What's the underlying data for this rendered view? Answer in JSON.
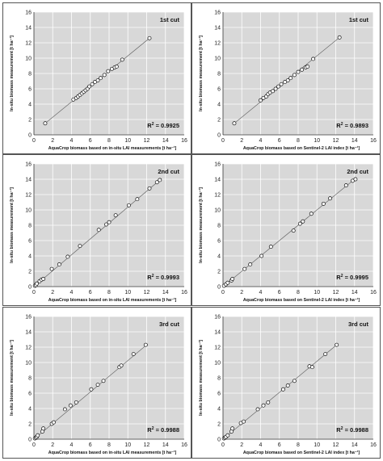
{
  "chart_data": [
    {
      "type": "scatter",
      "title": "1st cut",
      "xlabel": "AquaCrop biomass based on in-situ LAI measurements [t ha⁻¹]",
      "ylabel": "In-situ biomass measurement [t ha⁻¹]",
      "r2": "0.9925",
      "xlim": [
        0,
        16
      ],
      "ylim": [
        0,
        16
      ],
      "xticks": [
        "0",
        "2",
        "4",
        "6",
        "8",
        "10",
        "12",
        "14",
        "16"
      ],
      "yticks": [
        "0",
        "2",
        "4",
        "6",
        "8",
        "10",
        "12",
        "14",
        "16"
      ],
      "grid": true,
      "series": [
        {
          "points": [
            [
              1.2,
              1.5
            ],
            [
              4.2,
              4.6
            ],
            [
              4.5,
              4.8
            ],
            [
              4.7,
              5.0
            ],
            [
              4.9,
              5.2
            ],
            [
              5.1,
              5.4
            ],
            [
              5.3,
              5.6
            ],
            [
              5.5,
              5.8
            ],
            [
              5.7,
              6.0
            ],
            [
              5.9,
              6.3
            ],
            [
              6.2,
              6.6
            ],
            [
              6.5,
              6.9
            ],
            [
              6.8,
              7.1
            ],
            [
              7.1,
              7.4
            ],
            [
              7.5,
              7.8
            ],
            [
              7.9,
              8.3
            ],
            [
              8.3,
              8.6
            ],
            [
              8.6,
              8.8
            ],
            [
              8.8,
              8.9
            ],
            [
              9.4,
              9.8
            ],
            [
              12.3,
              12.6
            ]
          ]
        }
      ],
      "fit": [
        [
          1.2,
          1.5
        ],
        [
          12.3,
          12.6
        ]
      ]
    },
    {
      "type": "scatter",
      "title": "1st cut",
      "xlabel": "AquaCrop biomass based on Sentinel-2 LAI index [t ha⁻¹]",
      "ylabel": "In-situ biomass measurement [t ha⁻¹]",
      "r2": "0.9893",
      "xlim": [
        0,
        16
      ],
      "ylim": [
        0,
        16
      ],
      "xticks": [
        "0",
        "2",
        "4",
        "6",
        "8",
        "10",
        "12",
        "14",
        "16"
      ],
      "yticks": [
        "0",
        "2",
        "4",
        "6",
        "8",
        "10",
        "12",
        "14",
        "16"
      ],
      "grid": true,
      "series": [
        {
          "points": [
            [
              1.2,
              1.5
            ],
            [
              4.0,
              4.5
            ],
            [
              4.3,
              4.8
            ],
            [
              4.6,
              5.0
            ],
            [
              4.8,
              5.3
            ],
            [
              5.0,
              5.5
            ],
            [
              5.3,
              5.7
            ],
            [
              5.6,
              6.0
            ],
            [
              5.9,
              6.3
            ],
            [
              6.2,
              6.6
            ],
            [
              6.6,
              6.9
            ],
            [
              6.9,
              7.1
            ],
            [
              7.2,
              7.4
            ],
            [
              7.6,
              7.8
            ],
            [
              8.0,
              8.2
            ],
            [
              8.4,
              8.5
            ],
            [
              8.8,
              8.8
            ],
            [
              9.0,
              8.9
            ],
            [
              9.6,
              9.9
            ],
            [
              12.4,
              12.7
            ]
          ]
        }
      ],
      "fit": [
        [
          1.2,
          1.5
        ],
        [
          12.4,
          12.7
        ]
      ]
    },
    {
      "type": "scatter",
      "title": "2nd cut",
      "xlabel": "AquaCrop biomass based on in-situ LAI measurements [t ha⁻¹]",
      "ylabel": "In-situ biomass measurement [t ha⁻¹]",
      "r2": "0.9993",
      "xlim": [
        0,
        16
      ],
      "ylim": [
        0,
        16
      ],
      "xticks": [
        "0",
        "2",
        "4",
        "6",
        "8",
        "10",
        "12",
        "14",
        "16"
      ],
      "yticks": [
        "0",
        "2",
        "4",
        "6",
        "8",
        "10",
        "12",
        "14",
        "16"
      ],
      "grid": true,
      "series": [
        {
          "points": [
            [
              0.1,
              0.1
            ],
            [
              0.2,
              0.2
            ],
            [
              0.3,
              0.4
            ],
            [
              0.6,
              0.7
            ],
            [
              0.8,
              0.9
            ],
            [
              1.0,
              1.0
            ],
            [
              1.9,
              2.3
            ],
            [
              2.7,
              2.9
            ],
            [
              3.6,
              3.9
            ],
            [
              4.9,
              5.3
            ],
            [
              6.9,
              7.4
            ],
            [
              7.7,
              8.1
            ],
            [
              8.0,
              8.4
            ],
            [
              8.7,
              9.3
            ],
            [
              10.1,
              10.6
            ],
            [
              11.0,
              11.4
            ],
            [
              12.3,
              12.8
            ],
            [
              13.1,
              13.6
            ],
            [
              13.4,
              13.9
            ]
          ]
        }
      ],
      "fit": [
        [
          0,
          0
        ],
        [
          13.6,
          14.1
        ]
      ]
    },
    {
      "type": "scatter",
      "title": "2nd cut",
      "xlabel": "AquaCrop biomass based on Sentinel-2 LAI index [t ha⁻¹]",
      "ylabel": "In-situ biomass measurement [t ha⁻¹]",
      "r2": "0.9995",
      "xlim": [
        0,
        16
      ],
      "ylim": [
        0,
        16
      ],
      "xticks": [
        "0",
        "2",
        "4",
        "6",
        "8",
        "10",
        "12",
        "14",
        "16"
      ],
      "yticks": [
        "0",
        "2",
        "4",
        "6",
        "8",
        "10",
        "12",
        "14",
        "16"
      ],
      "grid": true,
      "series": [
        {
          "points": [
            [
              0.1,
              0.1
            ],
            [
              0.3,
              0.3
            ],
            [
              0.5,
              0.5
            ],
            [
              0.9,
              0.8
            ],
            [
              1.0,
              1.0
            ],
            [
              2.3,
              2.3
            ],
            [
              2.9,
              2.9
            ],
            [
              4.1,
              4.0
            ],
            [
              5.1,
              5.2
            ],
            [
              7.5,
              7.3
            ],
            [
              8.2,
              8.2
            ],
            [
              8.5,
              8.5
            ],
            [
              9.4,
              9.5
            ],
            [
              10.7,
              10.8
            ],
            [
              11.4,
              11.5
            ],
            [
              13.1,
              13.2
            ],
            [
              13.8,
              13.8
            ],
            [
              14.1,
              14.0
            ]
          ]
        }
      ],
      "fit": [
        [
          0,
          0
        ],
        [
          14.2,
          14.2
        ]
      ]
    },
    {
      "type": "scatter",
      "title": "3rd cut",
      "xlabel": "AquaCrop biomass based on in-situ LAI measurements [t ha⁻¹]",
      "ylabel": "In-situ biomass measurement [t ha⁻¹]",
      "r2": "0.9988",
      "xlim": [
        0,
        16
      ],
      "ylim": [
        0,
        16
      ],
      "xticks": [
        "0",
        "2",
        "4",
        "6",
        "8",
        "10",
        "12",
        "14",
        "16"
      ],
      "yticks": [
        "0",
        "2",
        "4",
        "6",
        "8",
        "10",
        "12",
        "14",
        "16"
      ],
      "grid": true,
      "series": [
        {
          "points": [
            [
              0.1,
              0.1
            ],
            [
              0.2,
              0.2
            ],
            [
              0.3,
              0.3
            ],
            [
              0.4,
              0.5
            ],
            [
              0.9,
              1.0
            ],
            [
              1.0,
              1.4
            ],
            [
              1.9,
              2.0
            ],
            [
              2.1,
              2.2
            ],
            [
              3.3,
              3.9
            ],
            [
              3.9,
              4.4
            ],
            [
              4.5,
              4.8
            ],
            [
              6.1,
              6.5
            ],
            [
              6.8,
              7.1
            ],
            [
              7.4,
              7.6
            ],
            [
              9.1,
              9.4
            ],
            [
              9.3,
              9.6
            ],
            [
              10.6,
              11.1
            ],
            [
              11.9,
              12.3
            ]
          ]
        }
      ],
      "fit": [
        [
          0,
          0
        ],
        [
          12.0,
          12.3
        ]
      ]
    },
    {
      "type": "scatter",
      "title": "3rd cut",
      "xlabel": "AquaCrop biomass based on Sentinel-2 LAI index [t ha⁻¹]",
      "ylabel": "In-situ biomass measurement [t ha⁻¹]",
      "r2": "0.9988",
      "xlim": [
        0,
        16
      ],
      "ylim": [
        0,
        16
      ],
      "xticks": [
        "0",
        "2",
        "4",
        "6",
        "8",
        "10",
        "12",
        "14",
        "16"
      ],
      "yticks": [
        "0",
        "2",
        "4",
        "6",
        "8",
        "10",
        "12",
        "14",
        "16"
      ],
      "grid": true,
      "series": [
        {
          "points": [
            [
              0.1,
              0.1
            ],
            [
              0.2,
              0.2
            ],
            [
              0.3,
              0.3
            ],
            [
              0.5,
              0.5
            ],
            [
              0.9,
              1.0
            ],
            [
              1.0,
              1.4
            ],
            [
              1.9,
              2.1
            ],
            [
              2.2,
              2.3
            ],
            [
              3.7,
              3.9
            ],
            [
              4.3,
              4.4
            ],
            [
              4.8,
              4.8
            ],
            [
              6.4,
              6.5
            ],
            [
              6.9,
              7.0
            ],
            [
              7.6,
              7.6
            ],
            [
              9.2,
              9.5
            ],
            [
              9.5,
              9.4
            ],
            [
              10.9,
              11.1
            ],
            [
              12.1,
              12.3
            ]
          ]
        }
      ],
      "fit": [
        [
          0,
          0
        ],
        [
          12.2,
          12.4
        ]
      ]
    }
  ]
}
